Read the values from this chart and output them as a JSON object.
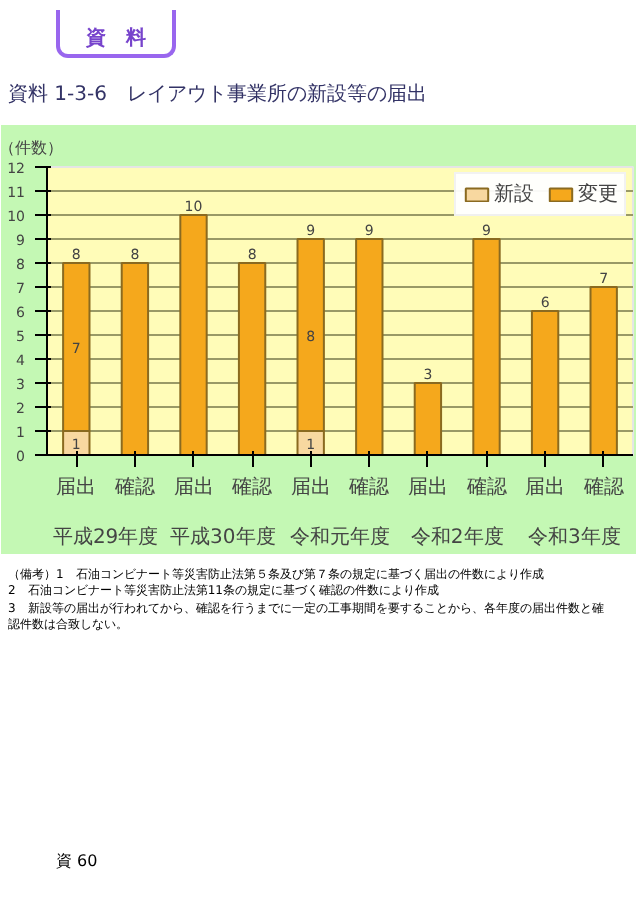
{
  "chart_data": {
    "type": "bar",
    "stacked": true,
    "title": "資料 1-3-6　レイアウト事業所の新設等の届出",
    "ylabel": "（件数）",
    "categories": [
      "届出",
      "確認",
      "届出",
      "確認",
      "届出",
      "確認",
      "届出",
      "確認",
      "届出",
      "確認"
    ],
    "series": [
      {
        "name": "新設",
        "color": "#f8d8a0",
        "values": [
          1,
          null,
          null,
          null,
          1,
          null,
          null,
          null,
          null,
          null
        ],
        "value_labels": [
          "1",
          null,
          null,
          null,
          "1",
          null,
          null,
          null,
          null,
          null
        ]
      },
      {
        "name": "変更",
        "color": "#f5a81c",
        "values": [
          7,
          8,
          10,
          8,
          8,
          9,
          3,
          9,
          6,
          7
        ],
        "value_labels": [
          "7",
          null,
          null,
          null,
          "8",
          null,
          null,
          null,
          null,
          null
        ]
      }
    ],
    "totals": [
      "8",
      "8",
      "10",
      "8",
      "9",
      "9",
      "3",
      "9",
      "6",
      "7"
    ],
    "ylim": [
      0,
      12
    ],
    "yticks": [
      0,
      1,
      2,
      3,
      4,
      5,
      6,
      7,
      8,
      9,
      10,
      11,
      12
    ],
    "grid": "y",
    "legend": "top right",
    "annotations": [
      "平成29年度",
      "平成30年度",
      "令和元年度",
      "令和2年度",
      "令和3年度",
      "（備考）1　石油コンビナート等災害防止法第５条及び第７条の規定に基づく届出の件数により作成",
      "2　石油コンビナート等災害防止法第11条の規定に基づく確認の件数により作成",
      "3　新設等の届出が行われてから、確認を行うまでに一定の工事期間を要することから、各年度の届出件数と確認件数は合致しない。",
      "資　料",
      "資 60"
    ]
  }
}
